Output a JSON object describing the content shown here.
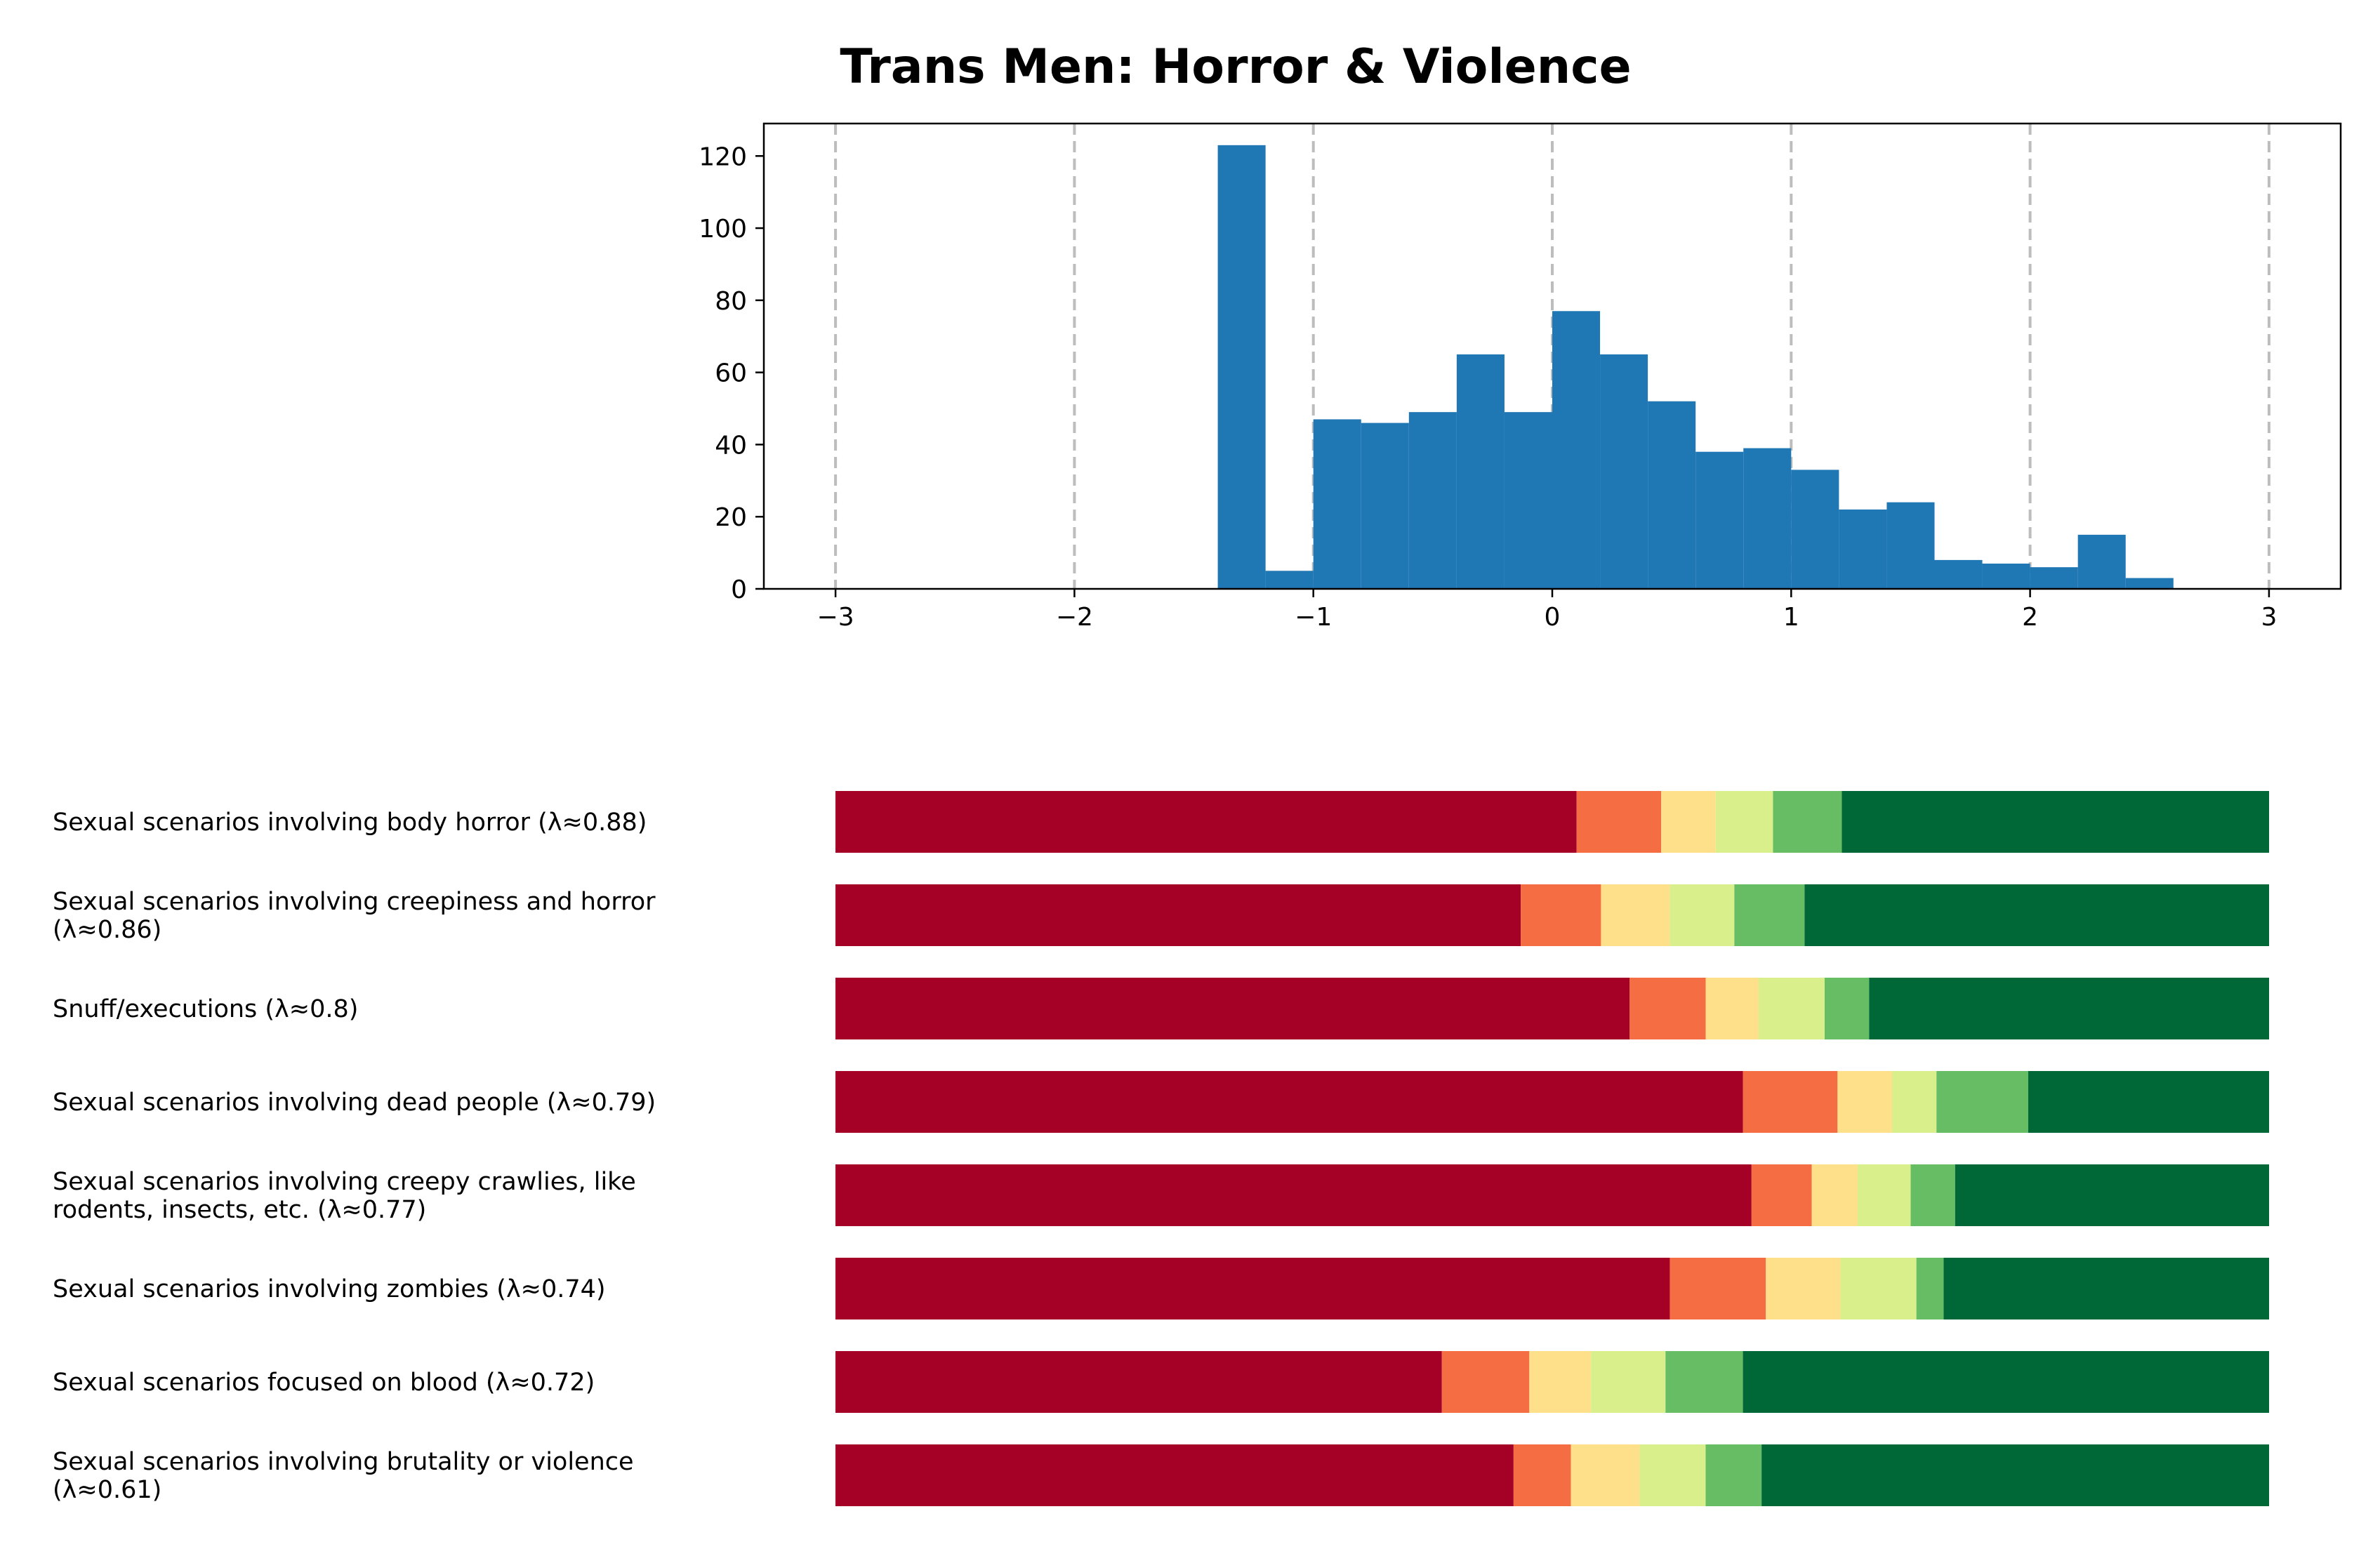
{
  "chart_data": [
    {
      "type": "histogram",
      "title": "Trans Men: Horror & Violence",
      "xlim": [
        -3.3,
        3.3
      ],
      "ylim": [
        0,
        129
      ],
      "x_ticks": [
        "−3",
        "−2",
        "−1",
        "0",
        "1",
        "2",
        "3"
      ],
      "x_tick_values": [
        -3,
        -2,
        -1,
        0,
        1,
        2,
        3
      ],
      "y_ticks": [
        "0",
        "20",
        "40",
        "60",
        "80",
        "100",
        "120"
      ],
      "y_tick_values": [
        0,
        20,
        40,
        60,
        80,
        100,
        120
      ],
      "vlines": [
        -3,
        -2,
        -1,
        0,
        1,
        2,
        3
      ],
      "grid": "vertical dashed",
      "bin_width": 0.2,
      "bins": [
        {
          "x0": -1.4,
          "count": 123
        },
        {
          "x0": -1.2,
          "count": 5
        },
        {
          "x0": -1.0,
          "count": 47
        },
        {
          "x0": -0.8,
          "count": 46
        },
        {
          "x0": -0.6,
          "count": 49
        },
        {
          "x0": -0.4,
          "count": 65
        },
        {
          "x0": -0.2,
          "count": 49
        },
        {
          "x0": 0.0,
          "count": 77
        },
        {
          "x0": 0.2,
          "count": 65
        },
        {
          "x0": 0.4,
          "count": 52
        },
        {
          "x0": 0.6,
          "count": 38
        },
        {
          "x0": 0.8,
          "count": 39
        },
        {
          "x0": 1.0,
          "count": 33
        },
        {
          "x0": 1.2,
          "count": 22
        },
        {
          "x0": 1.4,
          "count": 24
        },
        {
          "x0": 1.6,
          "count": 8
        },
        {
          "x0": 1.8,
          "count": 7
        },
        {
          "x0": 2.0,
          "count": 6
        },
        {
          "x0": 2.2,
          "count": 15
        },
        {
          "x0": 2.4,
          "count": 3
        }
      ],
      "color": "#1f77b4"
    },
    {
      "type": "bar",
      "orientation": "horizontal",
      "stacked": true,
      "normalized": true,
      "segment_colors": [
        "#a50026",
        "#f46d43",
        "#fee08b",
        "#d9ef8b",
        "#66bd63",
        "#006837"
      ],
      "rows": [
        {
          "label": [
            "Sexual scenarios involving body horror (λ≈0.88)"
          ],
          "segments": [
            51.7,
            5.9,
            3.8,
            4.0,
            4.8,
            29.8
          ]
        },
        {
          "label": [
            "Sexual scenarios involving creepiness and horror",
            "(λ≈0.86)"
          ],
          "segments": [
            47.8,
            5.6,
            4.8,
            4.5,
            4.9,
            32.4
          ]
        },
        {
          "label": [
            "Snuff/executions (λ≈0.8)"
          ],
          "segments": [
            55.4,
            5.3,
            3.7,
            4.6,
            3.1,
            27.9
          ]
        },
        {
          "label": [
            "Sexual scenarios involving dead people (λ≈0.79)"
          ],
          "segments": [
            63.3,
            6.6,
            3.8,
            3.1,
            6.4,
            16.8
          ]
        },
        {
          "label": [
            "Sexual scenarios involving creepy crawlies, like",
            "rodents, insects, etc. (λ≈0.77)"
          ],
          "segments": [
            63.9,
            4.2,
            3.2,
            3.7,
            3.1,
            21.9
          ]
        },
        {
          "label": [
            "Sexual scenarios involving zombies (λ≈0.74)"
          ],
          "segments": [
            58.2,
            6.7,
            5.2,
            5.3,
            1.9,
            22.7
          ]
        },
        {
          "label": [
            "Sexual scenarios focused on blood (λ≈0.72)"
          ],
          "segments": [
            42.3,
            6.1,
            4.3,
            5.2,
            5.4,
            36.7
          ]
        },
        {
          "label": [
            "Sexual scenarios involving brutality or violence",
            "(λ≈0.61)"
          ],
          "segments": [
            47.3,
            4.0,
            4.8,
            4.6,
            3.9,
            35.4
          ]
        }
      ]
    }
  ]
}
